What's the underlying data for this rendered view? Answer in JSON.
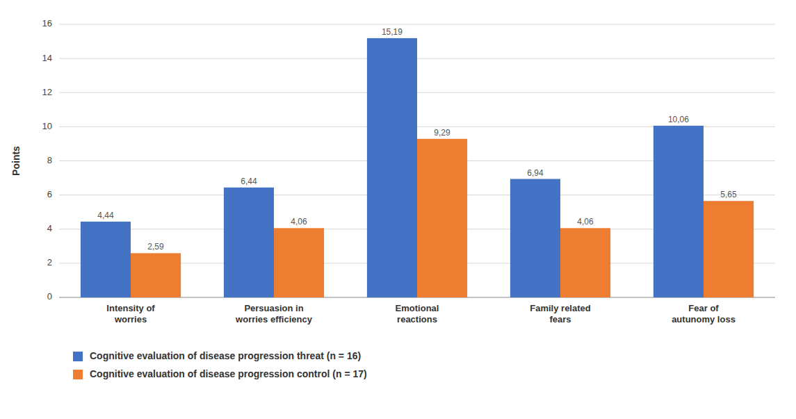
{
  "chart_data": {
    "type": "bar",
    "categories": [
      "Intensity of\nworries",
      "Persuasion in\nworries efficiency",
      "Emotional\nreactions",
      "Family related\nfears",
      "Fear of\nautunomy loss"
    ],
    "series": [
      {
        "name": "Cognitive evaluation of disease progression threat (n = 16)",
        "color": "#4472C4",
        "values": [
          4.44,
          6.44,
          15.19,
          6.94,
          10.06
        ],
        "value_labels": [
          "4,44",
          "6,44",
          "15,19",
          "6,94",
          "10,06"
        ]
      },
      {
        "name": "Cognitive evaluation of disease progression control (n = 17)",
        "color": "#ED7D31",
        "values": [
          2.59,
          4.06,
          9.29,
          4.06,
          5.65
        ],
        "value_labels": [
          "2,59",
          "4,06",
          "9,29",
          "4,06",
          "5,65"
        ]
      }
    ],
    "y_label": "Points",
    "ylim": [
      0,
      16
    ],
    "yticks": [
      0,
      2,
      4,
      6,
      8,
      10,
      12,
      14,
      16
    ],
    "grid": true,
    "data_labels": true,
    "legend": "bottom"
  }
}
